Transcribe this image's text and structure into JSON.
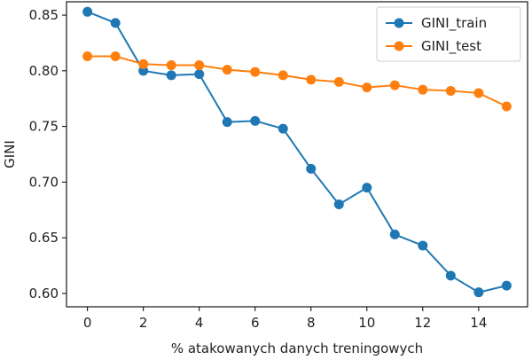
{
  "chart_data": {
    "type": "line",
    "title": "",
    "xlabel": "% atakowanych danych treningowych",
    "ylabel": "GINI",
    "xlim": [
      -0.75,
      15.75
    ],
    "ylim": [
      0.588,
      0.862
    ],
    "xticks": [
      0,
      2,
      4,
      6,
      8,
      10,
      12,
      14
    ],
    "yticks": [
      0.6,
      0.65,
      0.7,
      0.75,
      0.8,
      0.85
    ],
    "grid": false,
    "legend_position": "top-right",
    "x": [
      0,
      1,
      2,
      3,
      4,
      5,
      6,
      7,
      8,
      9,
      10,
      11,
      12,
      13,
      14,
      15
    ],
    "series": [
      {
        "name": "GINI_train",
        "color": "#1f77b4",
        "values": [
          0.853,
          0.843,
          0.8,
          0.796,
          0.797,
          0.754,
          0.755,
          0.748,
          0.712,
          0.68,
          0.695,
          0.653,
          0.643,
          0.616,
          0.601,
          0.607
        ]
      },
      {
        "name": "GINI_test",
        "color": "#ff7f0e",
        "values": [
          0.813,
          0.813,
          0.806,
          0.805,
          0.805,
          0.801,
          0.799,
          0.796,
          0.792,
          0.79,
          0.785,
          0.787,
          0.783,
          0.782,
          0.78,
          0.768
        ]
      }
    ]
  }
}
